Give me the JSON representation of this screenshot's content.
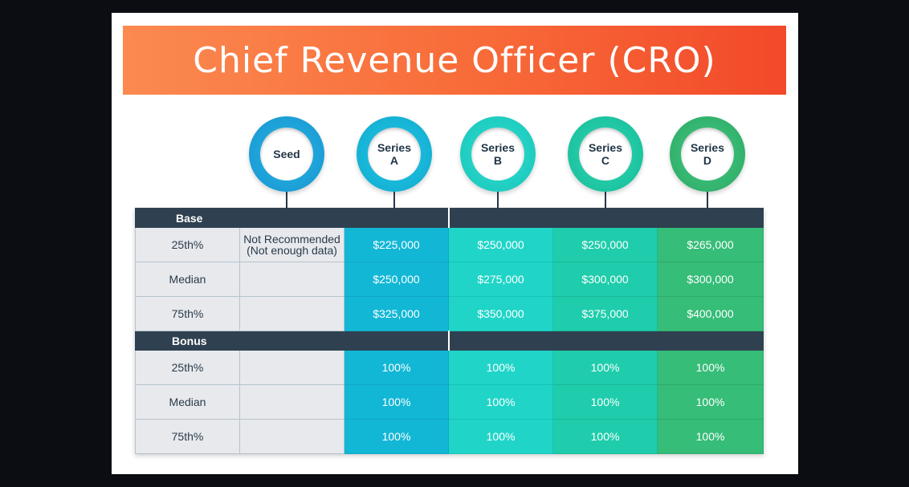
{
  "title": "Chief Revenue Officer (CRO)",
  "stages": [
    {
      "label": "Seed"
    },
    {
      "label": "Series\nA"
    },
    {
      "label": "Series\nB"
    },
    {
      "label": "Series\nC"
    },
    {
      "label": "Series\nD"
    }
  ],
  "colors": {
    "banner": "#f86a38",
    "seed": "#1a9fd8",
    "series_a": "#13b7d6",
    "series_b": "#20d5c8",
    "series_c": "#1fcdac",
    "series_d": "#36bd78",
    "header": "#2f4150"
  },
  "base": {
    "label": "Base",
    "rows": [
      {
        "label": "25th%",
        "seed": "Not Recommended\n(Not enough data)",
        "values": [
          "$225,000",
          "$250,000",
          "$250,000",
          "$265,000"
        ]
      },
      {
        "label": "Median",
        "seed": "",
        "values": [
          "$250,000",
          "$275,000",
          "$300,000",
          "$300,000"
        ]
      },
      {
        "label": "75th%",
        "seed": "",
        "values": [
          "$325,000",
          "$350,000",
          "$375,000",
          "$400,000"
        ]
      }
    ]
  },
  "bonus": {
    "label": "Bonus",
    "rows": [
      {
        "label": "25th%",
        "seed": "",
        "values": [
          "100%",
          "100%",
          "100%",
          "100%"
        ]
      },
      {
        "label": "Median",
        "seed": "",
        "values": [
          "100%",
          "100%",
          "100%",
          "100%"
        ]
      },
      {
        "label": "75th%",
        "seed": "",
        "values": [
          "100%",
          "100%",
          "100%",
          "100%"
        ]
      }
    ]
  }
}
